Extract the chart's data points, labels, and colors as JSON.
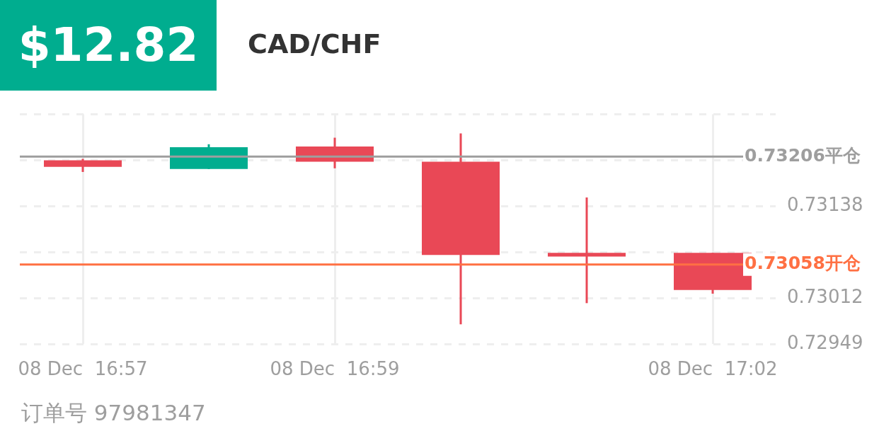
{
  "chart_data": {
    "type": "candlestick",
    "title": "CAD/CHF",
    "categories": [
      "08 Dec  16:57",
      null,
      "08 Dec  16:59",
      null,
      null,
      "08 Dec  17:02"
    ],
    "ohlc": [
      [
        0.73201,
        0.73203,
        0.73185,
        0.73192
      ],
      [
        0.73189,
        0.73223,
        0.73189,
        0.73219
      ],
      [
        0.7322,
        0.73232,
        0.7319,
        0.73199
      ],
      [
        0.73199,
        0.73238,
        0.72976,
        0.73071
      ],
      [
        0.73074,
        0.7315,
        0.73005,
        0.73069
      ],
      [
        0.73074,
        0.73074,
        0.73018,
        0.73023
      ]
    ],
    "colors": [
      "#e94856",
      "#00ad8f",
      "#e94856",
      "#e94856",
      "#e94856",
      "#e94856"
    ],
    "ylim": [
      0.72949,
      0.73264
    ],
    "yticks": [
      0.72949,
      0.73012,
      {
        "value": 0.73075,
        "label": null
      },
      0.73138,
      {
        "value": 0.73201,
        "label": null
      },
      {
        "value": 0.73264,
        "label": null
      }
    ],
    "grid": true,
    "ref_lines": [
      {
        "axis": "y",
        "value": 0.73206,
        "label": "0.73206平仓",
        "color": "#9e9e9e"
      },
      {
        "axis": "y",
        "value": 0.73058,
        "label": "0.73058开仓",
        "color": "#ff7043"
      }
    ],
    "annotations": [
      "$12.82",
      "订单号 97981347"
    ]
  }
}
